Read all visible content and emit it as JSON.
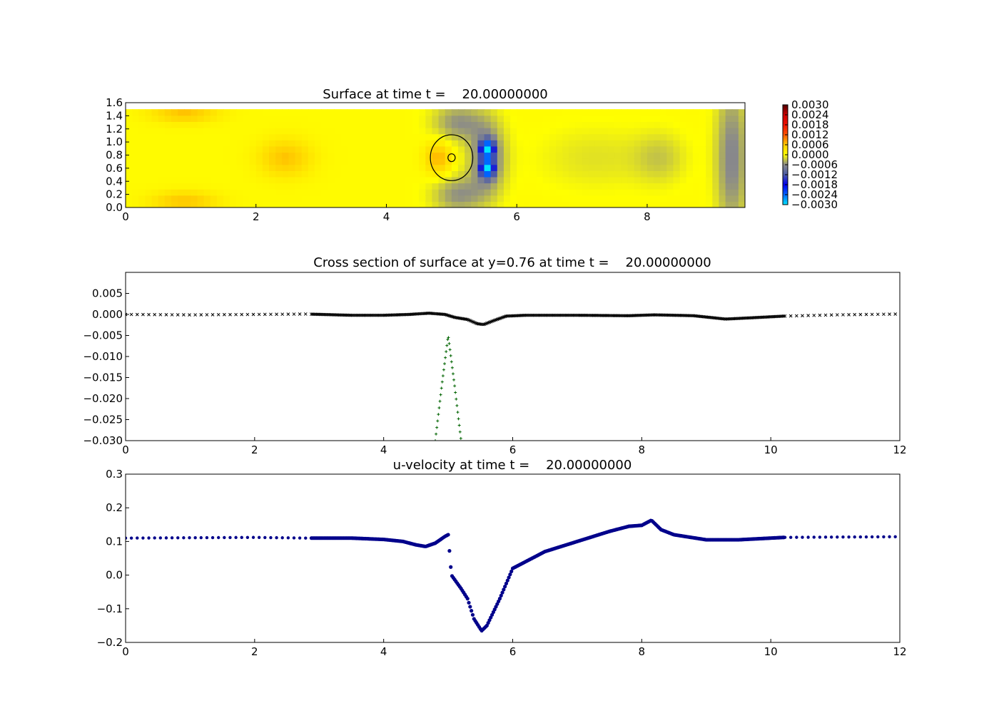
{
  "chart_data": [
    {
      "type": "heatmap",
      "title": "Surface at time t =    20.00000000",
      "xlim": [
        0,
        9.5
      ],
      "ylim": [
        0,
        1.6
      ],
      "xticks": [
        "0",
        "2",
        "4",
        "6",
        "8"
      ],
      "yticks": [
        "0.0",
        "0.2",
        "0.4",
        "0.6",
        "0.8",
        "1.0",
        "1.2",
        "1.4",
        "1.6"
      ],
      "colorbar": {
        "range": [
          -0.003,
          0.003
        ],
        "ticks": [
          "0.0030",
          "0.0024",
          "0.0018",
          "0.0012",
          "0.0006",
          "0.0000",
          "−0.0006",
          "−0.0012",
          "−0.0018",
          "−0.0024",
          "−0.0030"
        ],
        "colors": [
          {
            "v": -0.003,
            "c": "#00e5ff"
          },
          {
            "v": -0.0024,
            "c": "#0066ff"
          },
          {
            "v": -0.0018,
            "c": "#0000ee"
          },
          {
            "v": -0.0012,
            "c": "#4a5aa8"
          },
          {
            "v": -0.0006,
            "c": "#8a8a8a"
          },
          {
            "v": 0.0,
            "c": "#ffff00"
          },
          {
            "v": 0.0006,
            "c": "#ffcc00"
          },
          {
            "v": 0.0012,
            "c": "#ff5500"
          },
          {
            "v": 0.0018,
            "c": "#ee1100"
          },
          {
            "v": 0.0024,
            "c": "#cc0000"
          },
          {
            "v": 0.003,
            "c": "#500000"
          }
        ]
      },
      "cylinder": {
        "cx": 5.0,
        "cy": 0.76,
        "r_outer": 0.35,
        "r_inner": 0.06
      },
      "features": [
        {
          "x": 0.9,
          "y": 1.45,
          "sx": 0.5,
          "sy": 0.15,
          "v": 0.0006
        },
        {
          "x": 0.9,
          "y": 0.1,
          "sx": 0.5,
          "sy": 0.15,
          "v": 0.0006
        },
        {
          "x": 2.45,
          "y": 0.76,
          "sx": 0.4,
          "sy": 0.28,
          "v": 0.0006
        },
        {
          "x": 4.8,
          "y": 0.76,
          "sx": 0.2,
          "sy": 0.25,
          "v": 0.0007
        },
        {
          "x": 5.55,
          "y": 0.9,
          "sx": 0.1,
          "sy": 0.13,
          "v": -0.0026
        },
        {
          "x": 5.55,
          "y": 0.6,
          "sx": 0.1,
          "sy": 0.13,
          "v": -0.0026
        },
        {
          "x": 5.55,
          "y": 0.76,
          "sx": 0.28,
          "sy": 0.55,
          "v": -0.0008
        },
        {
          "x": 5.1,
          "y": 1.3,
          "sx": 0.4,
          "sy": 0.3,
          "v": -0.0006
        },
        {
          "x": 5.1,
          "y": 0.2,
          "sx": 0.4,
          "sy": 0.3,
          "v": -0.0006
        },
        {
          "x": 9.3,
          "y": 0.76,
          "sx": 0.25,
          "sy": 1.2,
          "v": -0.0007
        },
        {
          "x": 7.2,
          "y": 0.76,
          "sx": 0.9,
          "sy": 0.5,
          "v": -0.0002
        },
        {
          "x": 8.2,
          "y": 0.76,
          "sx": 0.4,
          "sy": 0.4,
          "v": -0.0003
        }
      ]
    },
    {
      "type": "scatter",
      "title": "Cross section of surface at y=0.76 at time t =    20.00000000",
      "xlim": [
        0,
        12
      ],
      "ylim": [
        -0.03,
        0.01
      ],
      "xticks": [
        "0",
        "2",
        "4",
        "6",
        "8",
        "10",
        "12"
      ],
      "yticks": [
        "0.005",
        "0.000",
        "−0.005",
        "−0.010",
        "−0.015",
        "−0.020",
        "−0.025",
        "−0.030"
      ],
      "series": [
        {
          "marker": "x",
          "color": "#000000",
          "x": [
            0,
            1,
            2,
            2.8,
            3.5,
            4.0,
            4.4,
            4.7,
            4.95,
            5.1,
            5.3,
            5.45,
            5.55,
            5.7,
            5.9,
            6.2,
            7.0,
            7.8,
            8.2,
            8.8,
            9.3,
            9.7,
            10.2,
            11,
            12
          ],
          "y": [
            0,
            -0.0001,
            0,
            0.0001,
            -0.0002,
            -0.0002,
            0,
            0.0003,
            0,
            -0.0007,
            -0.0012,
            -0.0022,
            -0.0024,
            -0.0015,
            -0.0004,
            -0.0002,
            -0.0002,
            -0.0003,
            -0.0001,
            -0.0003,
            -0.0011,
            -0.0008,
            -0.0004,
            -0.0001,
            0.0001
          ]
        },
        {
          "marker": "+",
          "color": "#006400",
          "x": [
            4.8,
            4.9,
            5.0,
            5.1,
            5.2
          ],
          "y": [
            -0.03,
            -0.017,
            -0.005,
            -0.017,
            -0.03
          ]
        }
      ]
    },
    {
      "type": "scatter",
      "title": "u-velocity at time t =    20.00000000",
      "xlim": [
        0,
        12
      ],
      "ylim": [
        -0.2,
        0.3
      ],
      "xticks": [
        "0",
        "2",
        "4",
        "6",
        "8",
        "10",
        "12"
      ],
      "yticks": [
        "0.3",
        "0.2",
        "0.1",
        "0.0",
        "−0.1",
        "−0.2"
      ],
      "series": [
        {
          "marker": "o",
          "color": "#00008b",
          "x": [
            0,
            1,
            2,
            2.8,
            3.5,
            4.0,
            4.3,
            4.5,
            4.65,
            4.8,
            4.95,
            5.0,
            5.05,
            5.2,
            5.3,
            5.4,
            5.5,
            5.52,
            5.6,
            5.8,
            6.0,
            6.5,
            7.0,
            7.5,
            7.8,
            8.0,
            8.15,
            8.3,
            8.5,
            9.0,
            9.5,
            10.2,
            11,
            12
          ],
          "y": [
            0.11,
            0.111,
            0.112,
            0.11,
            0.11,
            0.106,
            0.1,
            0.09,
            0.085,
            0.095,
            0.115,
            0.12,
            0.0,
            -0.04,
            -0.07,
            -0.13,
            -0.16,
            -0.165,
            -0.15,
            -0.07,
            0.02,
            0.07,
            0.1,
            0.13,
            0.145,
            0.148,
            0.163,
            0.135,
            0.12,
            0.105,
            0.105,
            0.112,
            0.113,
            0.114
          ]
        }
      ]
    }
  ]
}
